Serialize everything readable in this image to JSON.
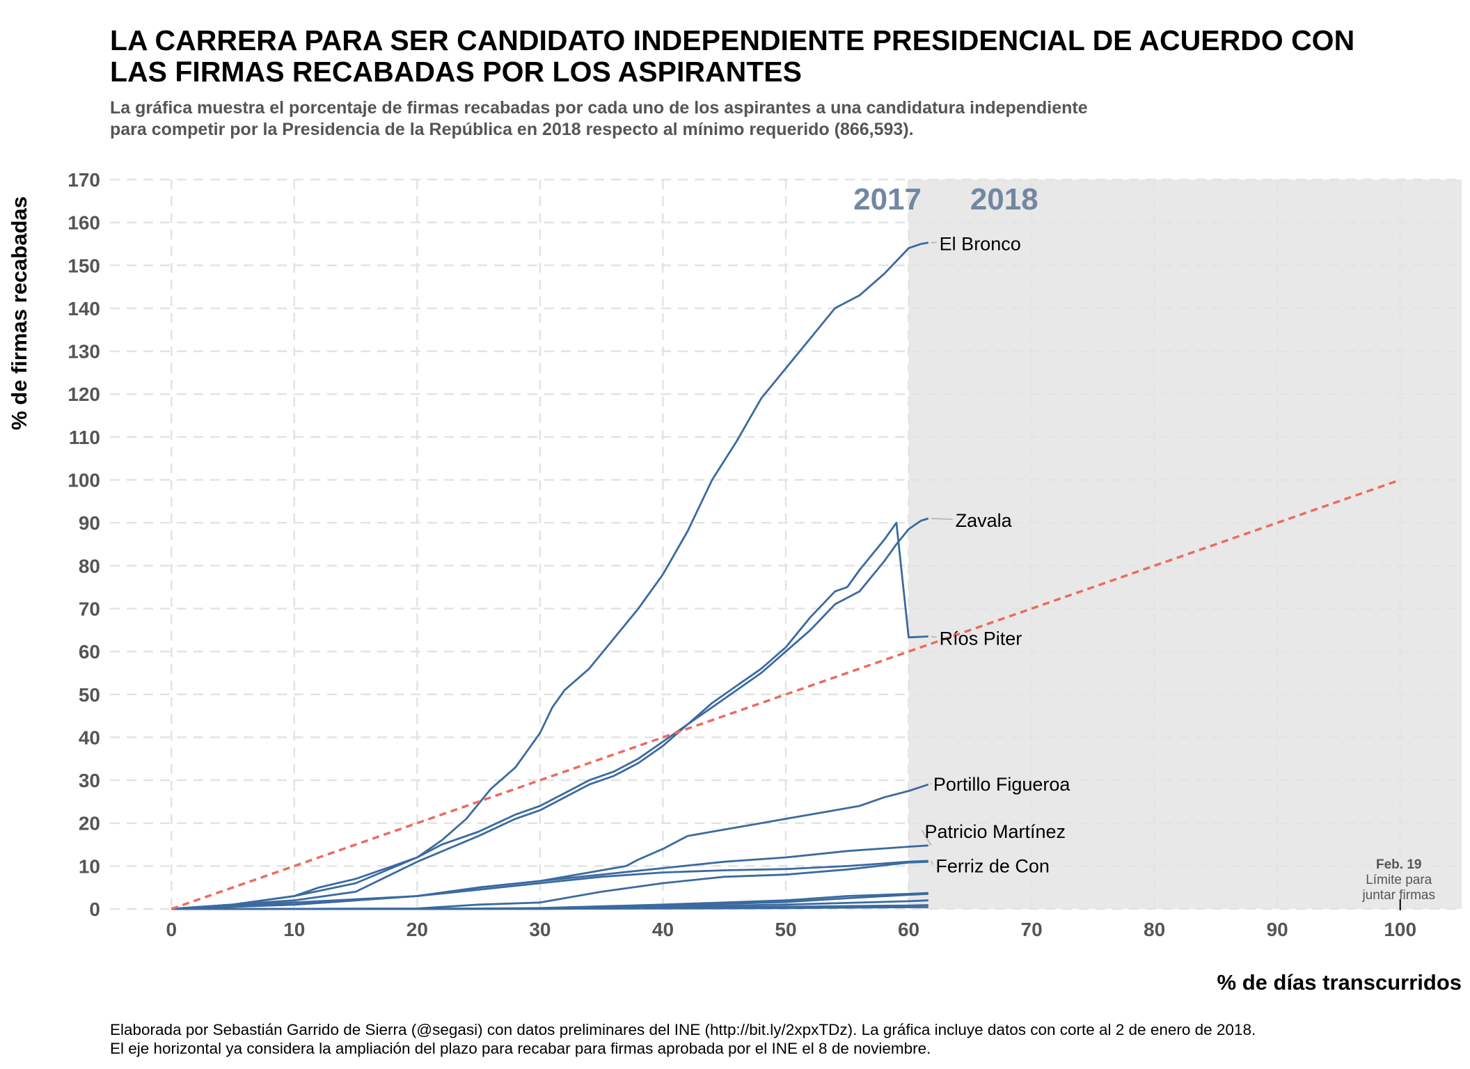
{
  "header": {
    "title_line1": "LA CARRERA PARA SER CANDIDATO INDEPENDIENTE PRESIDENCIAL DE ACUERDO CON",
    "title_line2": "LAS FIRMAS RECABADAS POR LOS ASPIRANTES",
    "subtitle_line1": "La gráfica muestra el porcentaje de firmas recabadas por cada uno de los aspirantes a una candidatura independiente",
    "subtitle_line2": "para competir por la Presidencia de la República en 2018 respecto al mínimo requerido (866,593)."
  },
  "footer": {
    "caption_line1": "Elaborada por Sebastián Garrido de Sierra (@segasi) con datos preliminares del INE (http://bit.ly/2xpxTDz). La gráfica incluye datos con corte al 2 de enero de 2018.",
    "caption_line2": "El eje horizontal ya considera la ampliación del plazo para recabar para firmas aprobada por el INE el 8 de noviembre."
  },
  "colors": {
    "series": "#3b6aa0",
    "reference": "#ee6a5e",
    "year_label": "#7387a3",
    "shade": "#e8e8e8",
    "grid": "#e3e3e3"
  },
  "chart_data": {
    "type": "line",
    "xlabel": "% de días transcurridos",
    "ylabel": "% de firmas recabadas",
    "xlim": [
      -5,
      105
    ],
    "ylim": [
      0,
      170
    ],
    "xticks": [
      0,
      10,
      20,
      30,
      40,
      50,
      60,
      70,
      80,
      90,
      100
    ],
    "yticks": [
      0,
      10,
      20,
      30,
      40,
      50,
      60,
      70,
      80,
      90,
      100,
      110,
      120,
      130,
      140,
      150,
      160,
      170
    ],
    "grid": true,
    "shaded_region": {
      "x_from": 60,
      "x_to": 105
    },
    "year_labels": [
      {
        "text": "2017",
        "x": 55.5,
        "y": 163
      },
      {
        "text": "2018",
        "x": 65,
        "y": 163
      }
    ],
    "reference_line": {
      "x": [
        0,
        100
      ],
      "y": [
        0,
        100
      ],
      "style": "dashed"
    },
    "annotation": {
      "x": 100,
      "title": "Feb. 19",
      "line1": "Límite para",
      "line2": "juntar firmas"
    },
    "series": [
      {
        "name": "El Bronco",
        "x": [
          0,
          5,
          10,
          12,
          15,
          18,
          20,
          22,
          24,
          26,
          28,
          30,
          31,
          32,
          34,
          36,
          38,
          40,
          42,
          44,
          46,
          48,
          50,
          52,
          54,
          56,
          58,
          59,
          60,
          61,
          61.6
        ],
        "y": [
          0,
          1,
          3,
          5,
          7,
          10,
          12,
          16,
          21,
          28,
          33,
          41,
          47,
          51,
          56,
          63,
          70,
          78,
          88,
          100,
          109,
          119,
          126,
          133,
          140,
          143,
          148,
          151,
          154,
          155,
          155.3
        ]
      },
      {
        "name": "Zavala",
        "x": [
          0,
          5,
          10,
          15,
          20,
          22,
          25,
          28,
          30,
          32,
          34,
          36,
          38,
          40,
          42,
          44,
          46,
          48,
          50,
          52,
          54,
          56,
          58,
          59,
          60,
          61,
          61.6
        ],
        "y": [
          0,
          1,
          3,
          6,
          12,
          15,
          18,
          22,
          24,
          27,
          30,
          32,
          35,
          39,
          43,
          47,
          51,
          55,
          60,
          65,
          71,
          74,
          81,
          85,
          88.5,
          90.5,
          91
        ]
      },
      {
        "name": "Ríos Piter",
        "x": [
          0,
          5,
          10,
          15,
          20,
          25,
          28,
          30,
          32,
          34,
          36,
          38,
          40,
          42,
          44,
          46,
          48,
          50,
          52,
          54,
          55,
          56,
          58,
          59,
          60,
          61.6
        ],
        "y": [
          0,
          1,
          2,
          4,
          11,
          17,
          21,
          23,
          26,
          29,
          31,
          34,
          38,
          43,
          48,
          52,
          56,
          61,
          68,
          74,
          75,
          79,
          86,
          90,
          63.3,
          63.5
        ]
      },
      {
        "name": "Portillo Figueroa",
        "x": [
          0,
          10,
          20,
          25,
          30,
          33,
          35,
          37,
          38,
          40,
          42,
          44,
          46,
          48,
          50,
          52,
          54,
          56,
          58,
          60,
          61.6
        ],
        "y": [
          0,
          1,
          3,
          5,
          6.5,
          8,
          9,
          10,
          11.5,
          14,
          17,
          18,
          19,
          20,
          21,
          22,
          23,
          24,
          26,
          27.5,
          29
        ]
      },
      {
        "name": "Patricio Martínez",
        "x": [
          0,
          10,
          20,
          25,
          30,
          35,
          40,
          45,
          50,
          55,
          60,
          61.6
        ],
        "y": [
          0,
          1.5,
          3,
          5,
          6.5,
          8,
          9.5,
          11,
          12,
          13.5,
          14.5,
          14.8
        ]
      },
      {
        "name": "Ferriz de Con",
        "x": [
          0,
          10,
          20,
          25,
          30,
          35,
          40,
          45,
          50,
          55,
          60,
          61.6
        ],
        "y": [
          0,
          1,
          3,
          4.5,
          6,
          7.5,
          8.5,
          9,
          9.3,
          10,
          11,
          11.2
        ]
      },
      {
        "name": "",
        "x": [
          0,
          10,
          20,
          25,
          30,
          35,
          40,
          45,
          50,
          55,
          60,
          61.6
        ],
        "y": [
          0,
          0,
          0.1,
          1,
          1.5,
          4,
          6,
          7.5,
          8,
          9.2,
          10.8,
          11
        ]
      },
      {
        "name": "",
        "x": [
          0,
          20,
          30,
          40,
          50,
          55,
          60,
          61.6
        ],
        "y": [
          0,
          0,
          0.2,
          1,
          2,
          3,
          3.5,
          3.7
        ]
      },
      {
        "name": "",
        "x": [
          0,
          20,
          30,
          40,
          50,
          55,
          60,
          61.6
        ],
        "y": [
          0,
          0,
          0.1,
          0.8,
          1.6,
          2.5,
          3.3,
          3.5
        ]
      },
      {
        "name": "",
        "x": [
          0,
          20,
          30,
          40,
          50,
          60,
          61.6
        ],
        "y": [
          0,
          0,
          0.1,
          0.5,
          1,
          1.8,
          2
        ]
      },
      {
        "name": "",
        "x": [
          0,
          30,
          40,
          50,
          60,
          61.6
        ],
        "y": [
          0,
          0,
          0.2,
          0.5,
          0.8,
          0.9
        ]
      },
      {
        "name": "",
        "x": [
          0,
          40,
          50,
          60,
          61.6
        ],
        "y": [
          0,
          0.1,
          0.2,
          0.4,
          0.4
        ]
      }
    ],
    "series_labels": [
      {
        "series": "El Bronco",
        "x": 62.5,
        "y": 155
      },
      {
        "series": "Zavala",
        "x": 63.8,
        "y": 90.5
      },
      {
        "series": "Ríos Piter",
        "x": 62.5,
        "y": 63
      },
      {
        "series": "Portillo Figueroa",
        "x": 62,
        "y": 29
      },
      {
        "series": "Patricio Martínez",
        "x": 61.3,
        "y": 18
      },
      {
        "series": "Ferriz de Con",
        "x": 62.2,
        "y": 10
      }
    ]
  }
}
